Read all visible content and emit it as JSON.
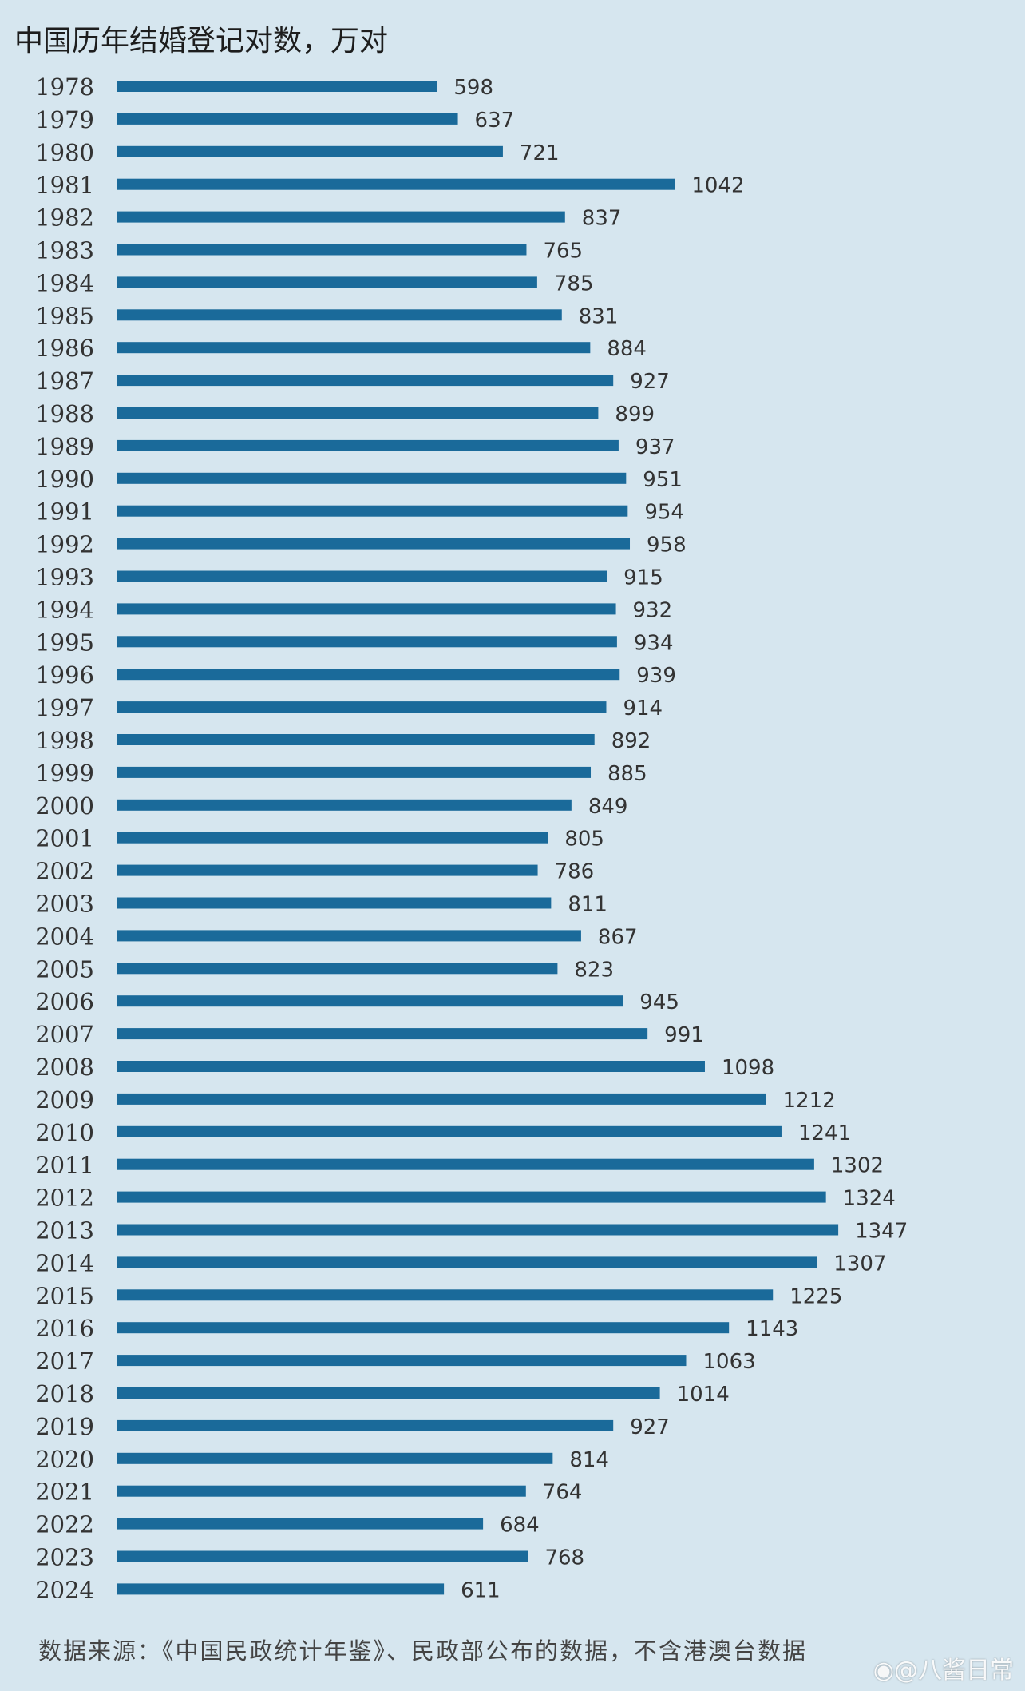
{
  "chart_data": {
    "type": "bar",
    "orientation": "horizontal",
    "title": "中国历年结婚登记对数，万对",
    "categories": [
      "1978",
      "1979",
      "1980",
      "1981",
      "1982",
      "1983",
      "1984",
      "1985",
      "1986",
      "1987",
      "1988",
      "1989",
      "1990",
      "1991",
      "1992",
      "1993",
      "1994",
      "1995",
      "1996",
      "1997",
      "1998",
      "1999",
      "2000",
      "2001",
      "2002",
      "2003",
      "2004",
      "2005",
      "2006",
      "2007",
      "2008",
      "2009",
      "2010",
      "2011",
      "2012",
      "2013",
      "2014",
      "2015",
      "2016",
      "2017",
      "2018",
      "2019",
      "2020",
      "2021",
      "2022",
      "2023",
      "2024"
    ],
    "values": [
      598,
      637,
      721,
      1042,
      837,
      765,
      785,
      831,
      884,
      927,
      899,
      937,
      951,
      954,
      958,
      915,
      932,
      934,
      939,
      914,
      892,
      885,
      849,
      805,
      786,
      811,
      867,
      823,
      945,
      991,
      1098,
      1212,
      1241,
      1302,
      1324,
      1347,
      1307,
      1225,
      1143,
      1063,
      1014,
      927,
      814,
      764,
      684,
      768,
      611
    ],
    "bar_color": "#1a6a9a",
    "background_color": "#d6e6ef",
    "grid": false,
    "legend": "none"
  },
  "source_note": "数据来源：《中国民政统计年鉴》、民政部公布的数据，不含港澳台数据",
  "watermark": "@八酱日常",
  "watermark_icon": "weibo-icon"
}
